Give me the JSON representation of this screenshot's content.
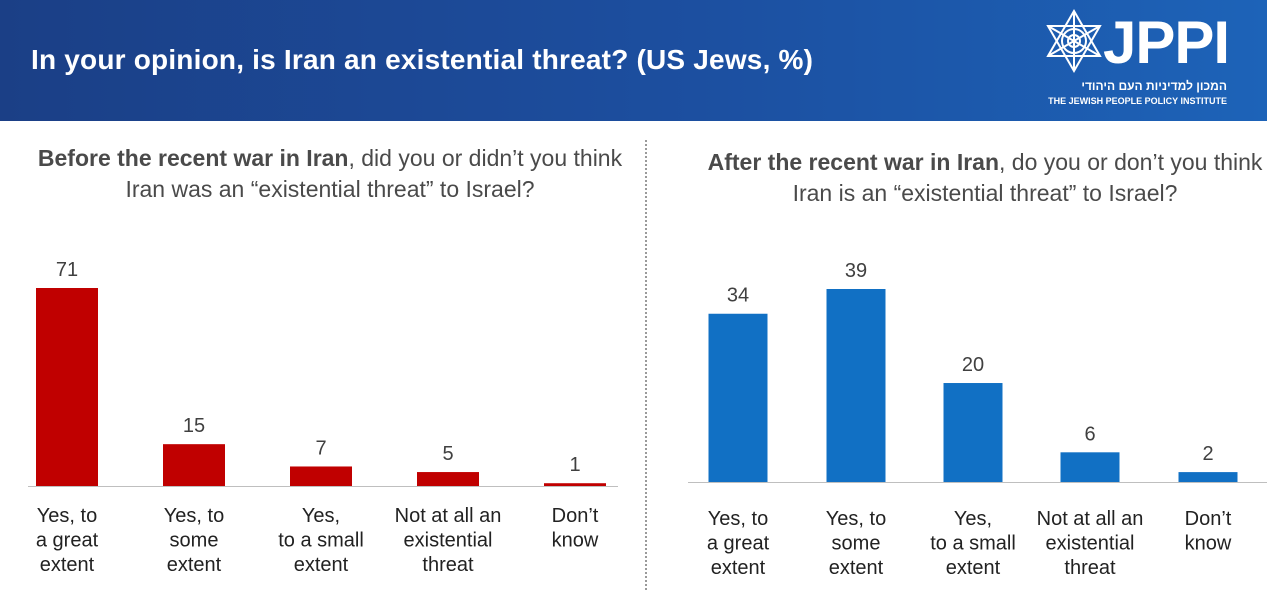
{
  "header": {
    "title": "In your opinion, is Iran an existential threat? (US Jews, %)",
    "logo_text": "JPPI",
    "logo_hebrew": "המכון למדיניות העם היהודי",
    "logo_english": "THE JEWISH PEOPLE POLICY INSTITUTE",
    "background_color": "#1c4fa0"
  },
  "left": {
    "question_bold": "Before the recent war in Iran",
    "question_rest": ", did you or didn’t you think Iran was an “existential threat” to Israel?"
  },
  "right": {
    "question_bold": "After the recent war in Iran",
    "question_rest": ", do you or don’t you think Iran is an “existential threat” to Israel?"
  },
  "chart_data": [
    {
      "type": "bar",
      "categories": [
        [
          "Yes, to",
          "a great",
          "extent"
        ],
        [
          "Yes, to",
          "some",
          "extent"
        ],
        [
          "Yes,",
          "to a small",
          "extent"
        ],
        [
          "Not at all an",
          "existential",
          "threat"
        ],
        [
          "Don’t",
          "know"
        ]
      ],
      "values": [
        71,
        15,
        7,
        5,
        1
      ],
      "color": "#c00000",
      "title": "",
      "xlabel": "",
      "ylabel": "",
      "ylim": [
        0,
        71
      ],
      "grid": false,
      "legend": "none"
    },
    {
      "type": "bar",
      "categories": [
        [
          "Yes, to",
          "a great",
          "extent"
        ],
        [
          "Yes, to",
          "some",
          "extent"
        ],
        [
          "Yes,",
          "to a small",
          "extent"
        ],
        [
          "Not at all an",
          "existential",
          "threat"
        ],
        [
          "Don’t",
          "know"
        ]
      ],
      "values": [
        34,
        39,
        20,
        6,
        2
      ],
      "color": "#1170c4",
      "title": "",
      "xlabel": "",
      "ylabel": "",
      "ylim": [
        0,
        39
      ],
      "grid": false,
      "legend": "none"
    }
  ]
}
